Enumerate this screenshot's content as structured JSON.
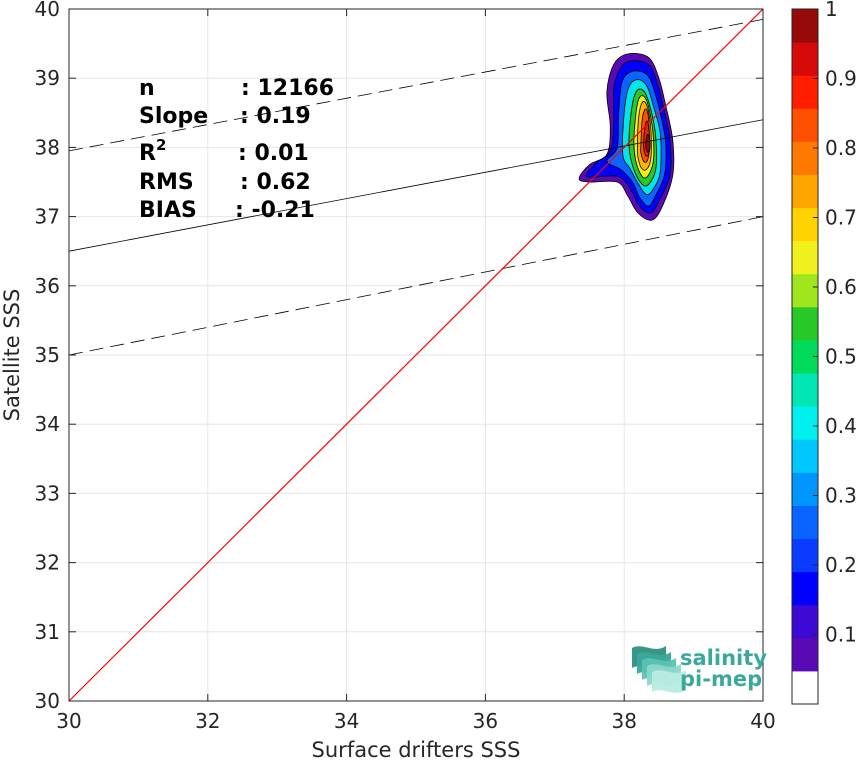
{
  "chart_data": {
    "type": "heatmap",
    "xlabel": "Surface drifters SSS",
    "ylabel": "Satellite SSS",
    "xlim": [
      30,
      40
    ],
    "ylim": [
      30,
      40
    ],
    "x_ticks": [
      30,
      32,
      34,
      36,
      38,
      40
    ],
    "y_ticks": [
      30,
      31,
      32,
      33,
      34,
      35,
      36,
      37,
      38,
      39,
      40
    ],
    "grid": true,
    "stats": [
      {
        "label": "n",
        "value": ": 12166"
      },
      {
        "label": "Slope",
        "value": ": 0.19"
      },
      {
        "label": "R",
        "label_sup": "2",
        "value": ": 0.01"
      },
      {
        "label": "RMS",
        "value": ": 0.62"
      },
      {
        "label": "BIAS",
        "value": ": -0.21"
      }
    ],
    "identity_line": {
      "x": [
        30,
        40
      ],
      "y": [
        30,
        40
      ],
      "color": "#ff0000"
    },
    "regression_line": {
      "x": [
        30,
        40
      ],
      "y": [
        36.5,
        38.4
      ],
      "color": "#000000"
    },
    "upper_bound_line": {
      "x": [
        30,
        40
      ],
      "y": [
        37.95,
        39.85
      ],
      "style": "dashed"
    },
    "lower_bound_line": {
      "x": [
        30,
        40
      ],
      "y": [
        35.0,
        37.0
      ],
      "style": "dashed"
    },
    "density_contours": [
      {
        "level": 0.05,
        "color": "#5a0ab4",
        "points": [
          [
            37.35,
            37.55
          ],
          [
            37.5,
            37.75
          ],
          [
            37.75,
            37.9
          ],
          [
            37.8,
            38.3
          ],
          [
            37.75,
            38.8
          ],
          [
            37.85,
            39.2
          ],
          [
            38.05,
            39.35
          ],
          [
            38.35,
            39.3
          ],
          [
            38.5,
            39.0
          ],
          [
            38.6,
            38.6
          ],
          [
            38.7,
            38.1
          ],
          [
            38.7,
            37.6
          ],
          [
            38.55,
            37.15
          ],
          [
            38.4,
            36.95
          ],
          [
            38.2,
            37.05
          ],
          [
            38.05,
            37.3
          ],
          [
            37.9,
            37.5
          ],
          [
            37.5,
            37.5
          ]
        ]
      },
      {
        "level": 0.15,
        "color": "#0000ff",
        "points": [
          [
            37.45,
            37.6
          ],
          [
            37.6,
            37.78
          ],
          [
            37.8,
            37.95
          ],
          [
            37.85,
            38.35
          ],
          [
            37.85,
            38.85
          ],
          [
            37.95,
            39.15
          ],
          [
            38.1,
            39.25
          ],
          [
            38.35,
            39.2
          ],
          [
            38.47,
            38.95
          ],
          [
            38.57,
            38.55
          ],
          [
            38.66,
            38.1
          ],
          [
            38.66,
            37.6
          ],
          [
            38.5,
            37.22
          ],
          [
            38.38,
            37.05
          ],
          [
            38.22,
            37.15
          ],
          [
            38.1,
            37.38
          ],
          [
            37.92,
            37.58
          ],
          [
            37.55,
            37.57
          ]
        ]
      },
      {
        "level": 0.25,
        "color": "#0a64ff",
        "points": [
          [
            37.75,
            37.8
          ],
          [
            37.9,
            38.0
          ],
          [
            37.92,
            38.5
          ],
          [
            37.97,
            38.95
          ],
          [
            38.12,
            39.1
          ],
          [
            38.33,
            39.05
          ],
          [
            38.44,
            38.8
          ],
          [
            38.53,
            38.45
          ],
          [
            38.6,
            38.05
          ],
          [
            38.58,
            37.6
          ],
          [
            38.45,
            37.3
          ],
          [
            38.35,
            37.15
          ],
          [
            38.22,
            37.28
          ],
          [
            38.12,
            37.5
          ],
          [
            37.95,
            37.68
          ]
        ]
      },
      {
        "level": 0.4,
        "color": "#00e6e6",
        "points": [
          [
            37.98,
            37.9
          ],
          [
            38.0,
            38.5
          ],
          [
            38.07,
            38.88
          ],
          [
            38.2,
            38.98
          ],
          [
            38.33,
            38.88
          ],
          [
            38.42,
            38.6
          ],
          [
            38.52,
            38.2
          ],
          [
            38.52,
            37.65
          ],
          [
            38.42,
            37.4
          ],
          [
            38.32,
            37.32
          ],
          [
            38.2,
            37.48
          ],
          [
            38.08,
            37.7
          ]
        ]
      },
      {
        "level": 0.55,
        "color": "#28c828",
        "points": [
          [
            38.07,
            38.0
          ],
          [
            38.1,
            38.5
          ],
          [
            38.17,
            38.8
          ],
          [
            38.28,
            38.82
          ],
          [
            38.37,
            38.6
          ],
          [
            38.45,
            38.2
          ],
          [
            38.46,
            37.72
          ],
          [
            38.38,
            37.5
          ],
          [
            38.28,
            37.45
          ],
          [
            38.15,
            37.65
          ]
        ]
      },
      {
        "level": 0.6,
        "color": "#f0f01e",
        "points": [
          [
            38.14,
            38.05
          ],
          [
            38.17,
            38.5
          ],
          [
            38.22,
            38.72
          ],
          [
            38.3,
            38.72
          ],
          [
            38.37,
            38.5
          ],
          [
            38.42,
            38.15
          ],
          [
            38.42,
            37.8
          ],
          [
            38.35,
            37.6
          ],
          [
            38.27,
            37.57
          ],
          [
            38.18,
            37.75
          ]
        ]
      },
      {
        "level": 0.7,
        "color": "#ffb400",
        "points": [
          [
            38.19,
            38.05
          ],
          [
            38.21,
            38.45
          ],
          [
            38.26,
            38.65
          ],
          [
            38.32,
            38.62
          ],
          [
            38.37,
            38.4
          ],
          [
            38.39,
            38.1
          ],
          [
            38.38,
            37.82
          ],
          [
            38.32,
            37.68
          ],
          [
            38.25,
            37.7
          ],
          [
            38.2,
            37.85
          ]
        ]
      },
      {
        "level": 0.8,
        "color": "#ff5000",
        "points": [
          [
            38.24,
            38.05
          ],
          [
            38.26,
            38.4
          ],
          [
            38.3,
            38.55
          ],
          [
            38.34,
            38.5
          ],
          [
            38.36,
            38.25
          ],
          [
            38.36,
            37.95
          ],
          [
            38.33,
            37.8
          ],
          [
            38.28,
            37.8
          ],
          [
            38.24,
            37.92
          ]
        ]
      },
      {
        "level": 0.9,
        "color": "#e61e1e",
        "points": [
          [
            38.28,
            38.05
          ],
          [
            38.3,
            38.3
          ],
          [
            38.33,
            38.38
          ],
          [
            38.36,
            38.22
          ],
          [
            38.37,
            38.0
          ],
          [
            38.34,
            37.88
          ],
          [
            38.3,
            37.9
          ]
        ]
      },
      {
        "level": 1.0,
        "color": "#960a0a",
        "points": [
          [
            38.31,
            38.03
          ],
          [
            38.33,
            38.18
          ],
          [
            38.36,
            38.15
          ],
          [
            38.37,
            38.0
          ],
          [
            38.34,
            37.93
          ]
        ]
      }
    ],
    "colorbar": {
      "range": [
        0,
        1
      ],
      "ticks": [
        0.1,
        0.2,
        0.3,
        0.4,
        0.5,
        0.6,
        0.7,
        0.8,
        0.9,
        1
      ],
      "tick_labels": [
        "0.1",
        "0.2",
        "0.3",
        "0.4",
        "0.5",
        "0.6",
        "0.7",
        "0.8",
        "0.9",
        "1"
      ],
      "colors": [
        "#ffffff",
        "#5a0ab4",
        "#3c0ad2",
        "#0000ff",
        "#0a3cff",
        "#0a64ff",
        "#0096ff",
        "#00c8ff",
        "#00f0f0",
        "#00e6b4",
        "#00dc5a",
        "#28c828",
        "#a0e61e",
        "#f0f01e",
        "#ffd200",
        "#ffa500",
        "#ff7800",
        "#ff5000",
        "#ff1e00",
        "#d70a0a",
        "#960a0a"
      ]
    },
    "logo": {
      "line1": "salinity",
      "line2": "pi-mep"
    }
  }
}
